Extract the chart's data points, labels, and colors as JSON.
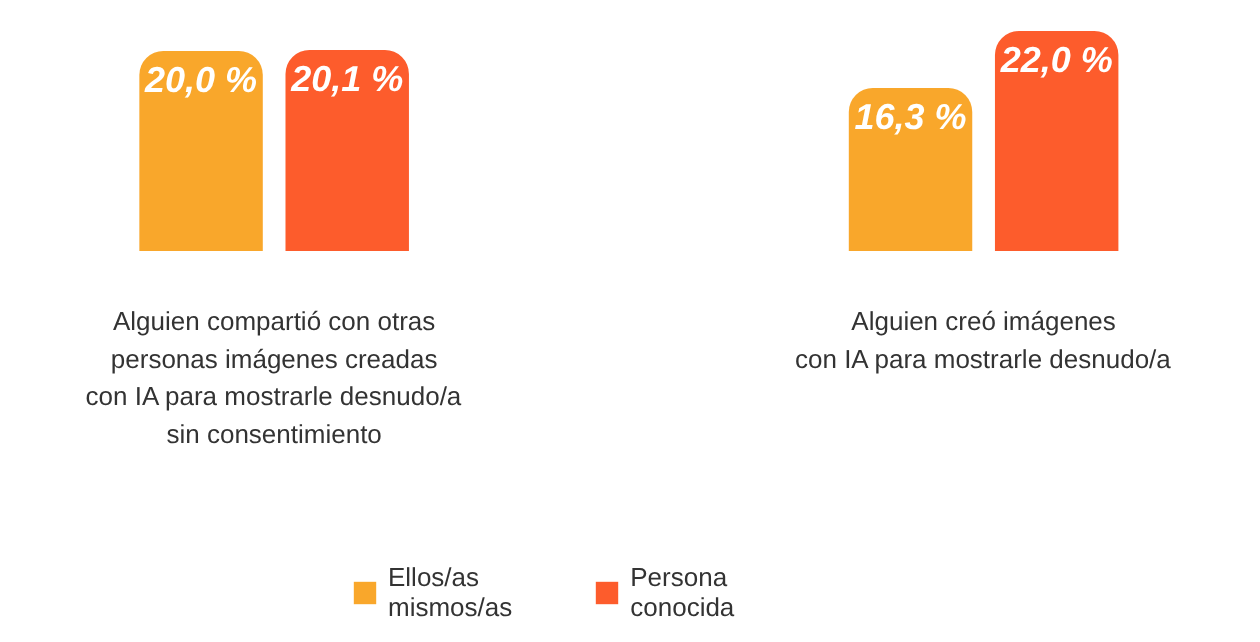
{
  "chart_data": {
    "type": "bar",
    "categories": [
      "Alguien compartió con otras\npersonas imágenes creadas\ncon IA para mostrarle desnudo/a\nsin consentimiento",
      "Alguien creó imágenes\ncon IA para mostrarle desnudo/a"
    ],
    "series": [
      {
        "name": "Ellos/as\nmismos/as",
        "color": "#f9a72b",
        "values": [
          20.0,
          16.3
        ],
        "value_labels": [
          "20,0 %",
          "16,3 %"
        ]
      },
      {
        "name": "Persona\nconocida",
        "color": "#fd5c2c",
        "values": [
          20.1,
          22.0
        ],
        "value_labels": [
          "20,1 %",
          "22,0 %"
        ]
      }
    ],
    "legend": "bottom",
    "grid": false
  }
}
